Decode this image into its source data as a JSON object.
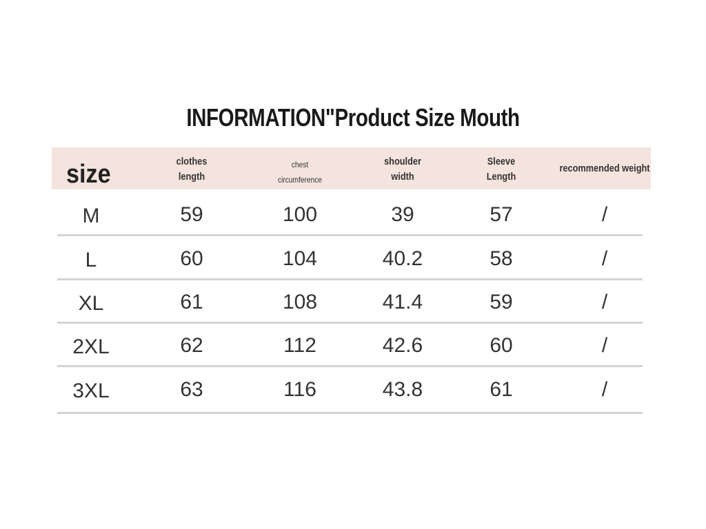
{
  "title": "INFORMATION\"Product Size Mouth",
  "table": {
    "headers": [
      "size",
      "clothes length",
      "chest circumference",
      "shoulder width",
      "Sleeve Length",
      "recommended weight"
    ],
    "rows": [
      [
        "M",
        "59",
        "100",
        "39",
        "57",
        "/"
      ],
      [
        "L",
        "60",
        "104",
        "40.2",
        "58",
        "/"
      ],
      [
        "XL",
        "61",
        "108",
        "41.4",
        "59",
        "/"
      ],
      [
        "2XL",
        "62",
        "112",
        "42.6",
        "60",
        "/"
      ],
      [
        "3XL",
        "63",
        "116",
        "43.8",
        "61",
        "/"
      ]
    ]
  }
}
